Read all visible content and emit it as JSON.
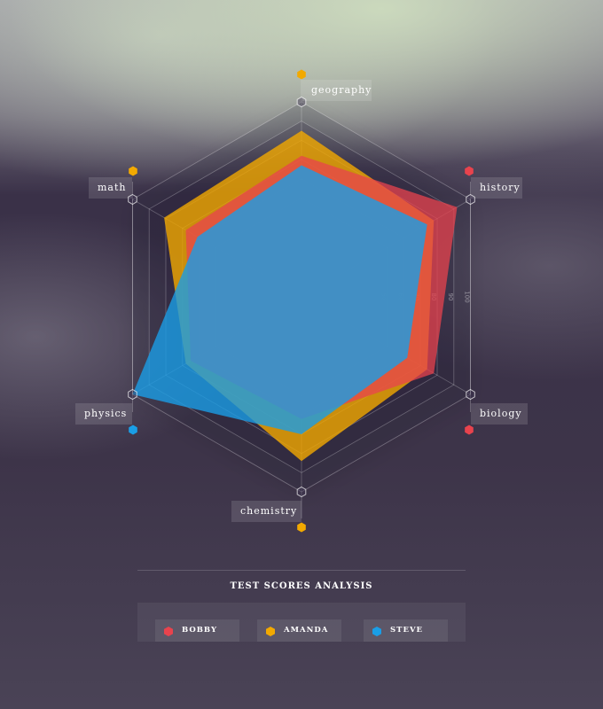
{
  "chart_data": {
    "type": "radar",
    "title": "TEST SCORES ANALYSIS",
    "axes": [
      "geography",
      "history",
      "biology",
      "chemistry",
      "physics",
      "math"
    ],
    "scale_ticks": [
      50,
      60,
      70,
      80,
      90,
      100
    ],
    "scale_range": [
      40,
      100
    ],
    "grid": true,
    "legend_position": "bottom",
    "series": [
      {
        "name": "BOBBY",
        "color": "#e8434d",
        "values": [
          72,
          92,
          78,
          62,
          65,
          68
        ]
      },
      {
        "name": "AMANDA",
        "color": "#f2a900",
        "values": [
          85,
          78,
          74,
          84,
          68,
          81
        ]
      },
      {
        "name": "STEVE",
        "color": "#1a9ee6",
        "values": [
          67,
          74,
          62,
          70,
          100,
          61
        ]
      }
    ],
    "axis_marker_series": [
      "AMANDA",
      "BOBBY",
      "BOBBY",
      "AMANDA",
      "STEVE",
      "AMANDA"
    ]
  }
}
